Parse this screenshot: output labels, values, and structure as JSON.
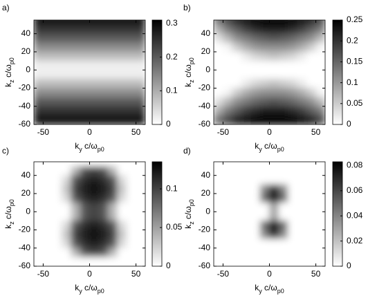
{
  "chart_data": [
    {
      "type": "heatmap",
      "panel_label": "a)",
      "xlabel": [
        "k",
        "y",
        " c/ω",
        "p0"
      ],
      "ylabel": [
        "k",
        "z",
        " c/ω",
        "p0"
      ],
      "xlim": [
        -60,
        60
      ],
      "ylim": [
        -60,
        55
      ],
      "xticks": [
        -50,
        0,
        50
      ],
      "yticks": [
        -60,
        -40,
        -20,
        0,
        20,
        40
      ],
      "cmap": [
        "#ffffff",
        "#000000"
      ],
      "clim": [
        0,
        0.31
      ],
      "cticks": [
        0,
        0.1,
        0.2,
        0.3
      ],
      "z": [
        [
          0.29,
          0.29,
          0.29,
          0.29,
          0.29,
          0.29,
          0.29,
          0.29,
          0.29,
          0.29,
          0.29,
          0.29
        ],
        [
          0.25,
          0.25,
          0.25,
          0.25,
          0.25,
          0.25,
          0.25,
          0.25,
          0.25,
          0.25,
          0.25,
          0.25
        ],
        [
          0.2,
          0.2,
          0.2,
          0.2,
          0.2,
          0.2,
          0.2,
          0.2,
          0.2,
          0.2,
          0.2,
          0.2
        ],
        [
          0.14,
          0.14,
          0.14,
          0.14,
          0.14,
          0.14,
          0.14,
          0.14,
          0.14,
          0.14,
          0.14,
          0.14
        ],
        [
          0.08,
          0.08,
          0.08,
          0.08,
          0.08,
          0.08,
          0.08,
          0.08,
          0.08,
          0.08,
          0.08,
          0.08
        ],
        [
          0.02,
          0.02,
          0.02,
          0.02,
          0.02,
          0.02,
          0.02,
          0.02,
          0.02,
          0.02,
          0.02,
          0.02
        ],
        [
          0.02,
          0.02,
          0.02,
          0.02,
          0.02,
          0.02,
          0.02,
          0.02,
          0.02,
          0.02,
          0.02,
          0.02
        ],
        [
          0.08,
          0.08,
          0.08,
          0.08,
          0.08,
          0.08,
          0.08,
          0.08,
          0.08,
          0.08,
          0.08,
          0.08
        ],
        [
          0.14,
          0.14,
          0.14,
          0.14,
          0.14,
          0.14,
          0.14,
          0.14,
          0.14,
          0.14,
          0.14,
          0.14
        ],
        [
          0.2,
          0.2,
          0.2,
          0.2,
          0.2,
          0.2,
          0.2,
          0.2,
          0.2,
          0.2,
          0.2,
          0.2
        ],
        [
          0.25,
          0.25,
          0.25,
          0.25,
          0.25,
          0.25,
          0.25,
          0.25,
          0.25,
          0.25,
          0.25,
          0.25
        ],
        [
          0.29,
          0.29,
          0.29,
          0.29,
          0.29,
          0.29,
          0.29,
          0.29,
          0.29,
          0.29,
          0.29,
          0.29
        ]
      ]
    },
    {
      "type": "heatmap",
      "panel_label": "b)",
      "xlabel": [
        "k",
        "y",
        " c/ω",
        "p0"
      ],
      "ylabel": [
        "k",
        "z",
        " c/ω",
        "p0"
      ],
      "xlim": [
        -60,
        60
      ],
      "ylim": [
        -60,
        55
      ],
      "xticks": [
        -50,
        0,
        50
      ],
      "yticks": [
        -60,
        -40,
        -20,
        0,
        20,
        40
      ],
      "cmap": [
        "#ffffff",
        "#000000"
      ],
      "clim": [
        0,
        0.25
      ],
      "cticks": [
        0,
        0.05,
        0.1,
        0.15,
        0.2,
        0.25
      ],
      "z": [
        [
          0.14,
          0.18,
          0.22,
          0.24,
          0.25,
          0.25,
          0.25,
          0.25,
          0.25,
          0.24,
          0.22,
          0.18
        ],
        [
          0.08,
          0.13,
          0.16,
          0.19,
          0.21,
          0.22,
          0.22,
          0.22,
          0.21,
          0.19,
          0.16,
          0.13
        ],
        [
          0.03,
          0.07,
          0.11,
          0.13,
          0.15,
          0.16,
          0.17,
          0.16,
          0.15,
          0.13,
          0.11,
          0.07
        ],
        [
          0,
          0.01,
          0.05,
          0.08,
          0.1,
          0.11,
          0.11,
          0.11,
          0.1,
          0.08,
          0.05,
          0.01
        ],
        [
          0,
          0,
          0,
          0.02,
          0.04,
          0.05,
          0.06,
          0.05,
          0.04,
          0.02,
          0,
          0
        ],
        [
          0,
          0,
          0,
          0,
          0,
          0,
          0,
          0,
          0,
          0,
          0,
          0
        ],
        [
          0,
          0,
          0,
          0,
          0,
          0,
          0,
          0,
          0,
          0,
          0,
          0
        ],
        [
          0,
          0,
          0,
          0.02,
          0.04,
          0.05,
          0.06,
          0.05,
          0.04,
          0.02,
          0,
          0
        ],
        [
          0,
          0.01,
          0.05,
          0.08,
          0.1,
          0.11,
          0.11,
          0.11,
          0.1,
          0.08,
          0.05,
          0.01
        ],
        [
          0.03,
          0.07,
          0.11,
          0.13,
          0.15,
          0.16,
          0.17,
          0.16,
          0.15,
          0.13,
          0.11,
          0.07
        ],
        [
          0.08,
          0.13,
          0.16,
          0.19,
          0.21,
          0.22,
          0.22,
          0.22,
          0.21,
          0.19,
          0.16,
          0.13
        ],
        [
          0.14,
          0.18,
          0.22,
          0.24,
          0.25,
          0.25,
          0.25,
          0.25,
          0.25,
          0.24,
          0.22,
          0.18
        ]
      ]
    },
    {
      "type": "heatmap",
      "panel_label": "c)",
      "xlabel": [
        "k",
        "y",
        " c/ω",
        "p0"
      ],
      "ylabel": [
        "k",
        "z",
        " c/ω",
        "p0"
      ],
      "xlim": [
        -60,
        60
      ],
      "ylim": [
        -60,
        55
      ],
      "xticks": [
        -50,
        0,
        50
      ],
      "yticks": [
        -60,
        -40,
        -20,
        0,
        20,
        40
      ],
      "cmap": [
        "#ffffff",
        "#000000"
      ],
      "clim": [
        0,
        0.135
      ],
      "cticks": [
        0,
        0.05,
        0.1
      ],
      "z": [
        [
          0,
          0,
          0,
          0,
          0,
          0,
          0,
          0,
          0,
          0,
          0,
          0
        ],
        [
          0,
          0,
          0,
          0,
          0.04,
          0.09,
          0.1,
          0.09,
          0.04,
          0,
          0,
          0
        ],
        [
          0,
          0,
          0,
          0.02,
          0.09,
          0.11,
          0.12,
          0.11,
          0.09,
          0.02,
          0,
          0
        ],
        [
          0,
          0,
          0,
          0.03,
          0.1,
          0.12,
          0.13,
          0.12,
          0.1,
          0.03,
          0,
          0
        ],
        [
          0,
          0,
          0,
          0.02,
          0.09,
          0.11,
          0.12,
          0.11,
          0.09,
          0.02,
          0,
          0
        ],
        [
          0,
          0,
          0,
          0,
          0.04,
          0.09,
          0.1,
          0.09,
          0.04,
          0,
          0,
          0
        ],
        [
          0,
          0,
          0,
          0,
          0.04,
          0.09,
          0.1,
          0.09,
          0.04,
          0,
          0,
          0
        ],
        [
          0,
          0,
          0,
          0.02,
          0.09,
          0.11,
          0.12,
          0.11,
          0.09,
          0.02,
          0,
          0
        ],
        [
          0,
          0,
          0,
          0.03,
          0.1,
          0.12,
          0.13,
          0.12,
          0.1,
          0.03,
          0,
          0
        ],
        [
          0,
          0,
          0,
          0.02,
          0.09,
          0.11,
          0.12,
          0.11,
          0.09,
          0.02,
          0,
          0
        ],
        [
          0,
          0,
          0,
          0,
          0.04,
          0.09,
          0.1,
          0.09,
          0.04,
          0,
          0,
          0
        ],
        [
          0,
          0,
          0,
          0,
          0,
          0,
          0,
          0,
          0,
          0,
          0,
          0
        ]
      ]
    },
    {
      "type": "heatmap",
      "panel_label": "d)",
      "xlabel": [
        "k",
        "y",
        " c/ω",
        "p0"
      ],
      "ylabel": [
        "k",
        "z",
        " c/ω",
        "p0"
      ],
      "xlim": [
        -60,
        60
      ],
      "ylim": [
        -60,
        55
      ],
      "xticks": [
        -50,
        0,
        50
      ],
      "yticks": [
        -60,
        -40,
        -20,
        0,
        20,
        40
      ],
      "cmap": [
        "#ffffff",
        "#000000"
      ],
      "clim": [
        0,
        0.083
      ],
      "cticks": [
        0,
        0.02,
        0.04,
        0.06,
        0.08
      ],
      "z": [
        [
          0,
          0,
          0,
          0,
          0,
          0,
          0,
          0,
          0,
          0,
          0,
          0
        ],
        [
          0,
          0,
          0,
          0,
          0,
          0,
          0,
          0,
          0,
          0,
          0,
          0
        ],
        [
          0,
          0,
          0,
          0,
          0,
          0,
          0,
          0,
          0,
          0,
          0,
          0
        ],
        [
          0,
          0,
          0,
          0,
          0,
          0.04,
          0.07,
          0.04,
          0,
          0,
          0,
          0
        ],
        [
          0,
          0,
          0,
          0,
          0,
          0.05,
          0.08,
          0.05,
          0,
          0,
          0,
          0
        ],
        [
          0,
          0,
          0,
          0,
          0,
          0,
          0.03,
          0,
          0,
          0,
          0,
          0
        ],
        [
          0,
          0,
          0,
          0,
          0,
          0,
          0.03,
          0,
          0,
          0,
          0,
          0
        ],
        [
          0,
          0,
          0,
          0,
          0,
          0.05,
          0.08,
          0.05,
          0,
          0,
          0,
          0
        ],
        [
          0,
          0,
          0,
          0,
          0,
          0.04,
          0.07,
          0.04,
          0,
          0,
          0,
          0
        ],
        [
          0,
          0,
          0,
          0,
          0,
          0,
          0,
          0,
          0,
          0,
          0,
          0
        ],
        [
          0,
          0,
          0,
          0,
          0,
          0,
          0,
          0,
          0,
          0,
          0,
          0
        ],
        [
          0,
          0,
          0,
          0,
          0,
          0,
          0,
          0,
          0,
          0,
          0,
          0
        ]
      ]
    }
  ]
}
